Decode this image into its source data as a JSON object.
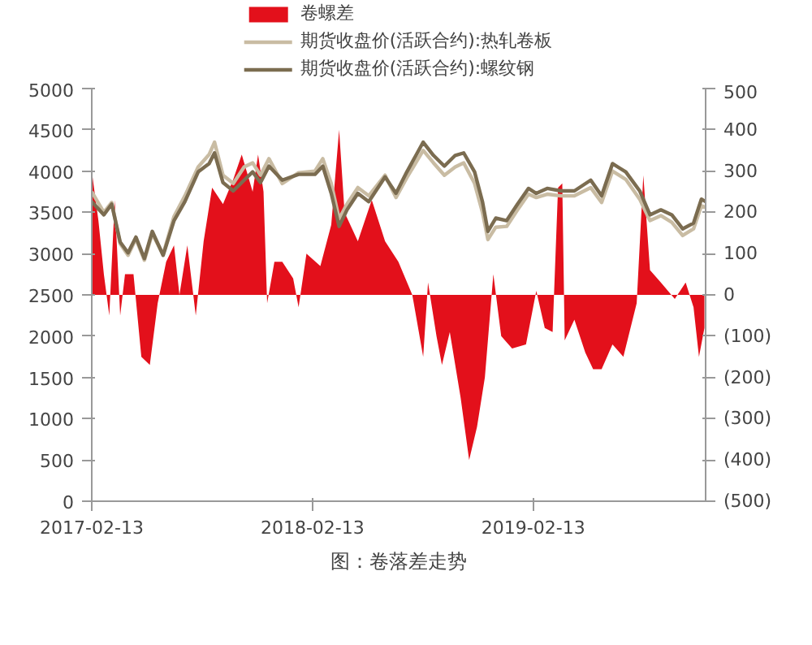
{
  "chart_data": {
    "type": "line",
    "legend": "top",
    "grid": false,
    "xlim": [
      "2017-02-13",
      "2019-11-25"
    ],
    "xticks": [
      {
        "value": "2017-02-13",
        "label": "2017-02-13"
      },
      {
        "value": "2018-02-13",
        "label": "2018-02-13"
      },
      {
        "value": "2019-02-13",
        "label": "2019-02-13"
      }
    ],
    "ylim": [
      0,
      5000
    ],
    "yticks": [
      0,
      500,
      1000,
      1500,
      2000,
      2500,
      3000,
      3500,
      4000,
      4500,
      5000
    ],
    "y2lim": [
      -500,
      500
    ],
    "y2ticks": [
      {
        "value": -500,
        "label": "(500)"
      },
      {
        "value": -400,
        "label": "(400)"
      },
      {
        "value": -300,
        "label": "(300)"
      },
      {
        "value": -200,
        "label": "(200)"
      },
      {
        "value": -100,
        "label": "(100)"
      },
      0,
      100,
      200,
      300,
      400,
      500
    ],
    "annotations": [
      "图：卷落差走势"
    ],
    "series": [
      {
        "name": "卷螺差",
        "type": "area",
        "axis": "y2",
        "color": "#e3101b",
        "x": [
          "2017-02-13",
          "2017-02-24",
          "2017-03-05",
          "2017-03-14",
          "2017-03-23",
          "2017-04-01",
          "2017-04-09",
          "2017-04-23",
          "2017-05-06",
          "2017-05-20",
          "2017-06-02",
          "2017-06-16",
          "2017-06-29",
          "2017-07-08",
          "2017-07-21",
          "2017-08-04",
          "2017-08-17",
          "2017-08-31",
          "2017-09-18",
          "2017-10-05",
          "2017-10-19",
          "2017-11-06",
          "2017-11-15",
          "2017-11-24",
          "2017-11-30",
          "2017-12-12",
          "2017-12-25",
          "2018-01-12",
          "2018-01-21",
          "2018-02-03",
          "2018-02-26",
          "2018-03-16",
          "2018-03-29",
          "2018-04-07",
          "2018-04-29",
          "2018-05-22",
          "2018-06-13",
          "2018-07-05",
          "2018-07-28",
          "2018-08-15",
          "2018-08-23",
          "2018-09-06",
          "2018-09-15",
          "2018-09-28",
          "2018-10-16",
          "2018-10-30",
          "2018-11-12",
          "2018-11-25",
          "2018-12-09",
          "2018-12-22",
          "2019-01-09",
          "2019-02-01",
          "2019-02-18",
          "2019-03-04",
          "2019-03-17",
          "2019-03-26",
          "2019-04-02",
          "2019-04-06",
          "2019-04-22",
          "2019-05-10",
          "2019-05-23",
          "2019-06-06",
          "2019-06-24",
          "2019-07-12",
          "2019-08-03",
          "2019-08-14",
          "2019-08-25",
          "2019-09-12",
          "2019-10-05",
          "2019-10-23",
          "2019-11-05",
          "2019-11-14",
          "2019-11-23"
        ],
        "values": [
          300,
          180,
          50,
          -50,
          230,
          -50,
          50,
          50,
          -150,
          -170,
          -20,
          80,
          120,
          0,
          120,
          -50,
          130,
          260,
          220,
          280,
          340,
          250,
          340,
          250,
          -20,
          80,
          80,
          40,
          -30,
          100,
          70,
          170,
          400,
          200,
          130,
          230,
          130,
          80,
          0,
          -150,
          30,
          -100,
          -170,
          -90,
          -250,
          -400,
          -320,
          -200,
          50,
          -100,
          -130,
          -120,
          10,
          -80,
          -90,
          260,
          270,
          -110,
          -60,
          -140,
          -180,
          -180,
          -120,
          -150,
          -20,
          290,
          60,
          30,
          -10,
          30,
          -30,
          -150,
          -80
        ]
      },
      {
        "name": "期货收盘价(活跃合约):热轧卷板",
        "color": "#c9bca3",
        "x": [
          "2017-02-13",
          "2017-03-05",
          "2017-03-18",
          "2017-04-01",
          "2017-04-14",
          "2017-04-27",
          "2017-05-11",
          "2017-05-24",
          "2017-06-11",
          "2017-06-29",
          "2017-07-17",
          "2017-08-08",
          "2017-08-26",
          "2017-09-04",
          "2017-09-18",
          "2017-10-05",
          "2017-10-23",
          "2017-11-06",
          "2017-11-19",
          "2017-12-03",
          "2017-12-25",
          "2018-01-21",
          "2018-02-17",
          "2018-03-02",
          "2018-03-16",
          "2018-03-29",
          "2018-04-11",
          "2018-04-29",
          "2018-05-17",
          "2018-06-13",
          "2018-07-01",
          "2018-07-19",
          "2018-08-15",
          "2018-09-01",
          "2018-09-19",
          "2018-10-07",
          "2018-10-21",
          "2018-11-08",
          "2018-11-21",
          "2018-11-30",
          "2018-12-13",
          "2018-12-31",
          "2019-01-18",
          "2019-02-05",
          "2019-02-18",
          "2019-03-08",
          "2019-03-31",
          "2019-04-22",
          "2019-05-19",
          "2019-06-06",
          "2019-06-24",
          "2019-07-16",
          "2019-08-08",
          "2019-08-25",
          "2019-09-12",
          "2019-09-30",
          "2019-10-18",
          "2019-11-05",
          "2019-11-18",
          "2019-11-25"
        ],
        "values": [
          3750,
          3500,
          3620,
          3120,
          2980,
          3180,
          2920,
          3240,
          2990,
          3450,
          3700,
          4050,
          4200,
          4350,
          3950,
          3850,
          4050,
          4100,
          3950,
          4150,
          3850,
          3980,
          4000,
          4150,
          3850,
          3420,
          3600,
          3800,
          3700,
          3950,
          3680,
          3920,
          4250,
          4100,
          3950,
          4050,
          4100,
          3850,
          3500,
          3170,
          3320,
          3330,
          3530,
          3720,
          3680,
          3720,
          3700,
          3700,
          3800,
          3620,
          4000,
          3900,
          3660,
          3400,
          3460,
          3380,
          3220,
          3300,
          3580,
          3560
        ]
      },
      {
        "name": "期货收盘价(活跃合约):螺纹钢",
        "color": "#7b6c50",
        "x": [
          "2017-02-13",
          "2017-03-05",
          "2017-03-18",
          "2017-04-01",
          "2017-04-14",
          "2017-04-27",
          "2017-05-11",
          "2017-05-24",
          "2017-06-11",
          "2017-06-29",
          "2017-07-17",
          "2017-08-08",
          "2017-08-26",
          "2017-09-04",
          "2017-09-18",
          "2017-10-05",
          "2017-10-23",
          "2017-11-06",
          "2017-11-19",
          "2017-12-03",
          "2017-12-25",
          "2018-01-21",
          "2018-02-17",
          "2018-03-02",
          "2018-03-16",
          "2018-03-29",
          "2018-04-11",
          "2018-04-29",
          "2018-05-17",
          "2018-06-13",
          "2018-07-01",
          "2018-07-19",
          "2018-08-15",
          "2018-09-01",
          "2018-09-19",
          "2018-10-07",
          "2018-10-21",
          "2018-11-08",
          "2018-11-21",
          "2018-11-30",
          "2018-12-13",
          "2018-12-31",
          "2019-01-18",
          "2019-02-05",
          "2019-02-18",
          "2019-03-08",
          "2019-03-31",
          "2019-04-22",
          "2019-05-19",
          "2019-06-06",
          "2019-06-24",
          "2019-07-16",
          "2019-08-08",
          "2019-08-25",
          "2019-09-12",
          "2019-09-30",
          "2019-10-18",
          "2019-11-05",
          "2019-11-18",
          "2019-11-25"
        ],
        "values": [
          3630,
          3470,
          3600,
          3140,
          3010,
          3200,
          2940,
          3270,
          2980,
          3400,
          3630,
          3990,
          4090,
          4220,
          3860,
          3760,
          3890,
          3990,
          3860,
          4060,
          3890,
          3960,
          3960,
          4060,
          3730,
          3330,
          3530,
          3730,
          3630,
          3930,
          3730,
          3990,
          4350,
          4190,
          4060,
          4190,
          4220,
          3990,
          3630,
          3270,
          3430,
          3400,
          3600,
          3790,
          3730,
          3790,
          3760,
          3760,
          3890,
          3700,
          4090,
          3990,
          3760,
          3470,
          3530,
          3470,
          3300,
          3370,
          3660,
          3630
        ]
      }
    ]
  }
}
